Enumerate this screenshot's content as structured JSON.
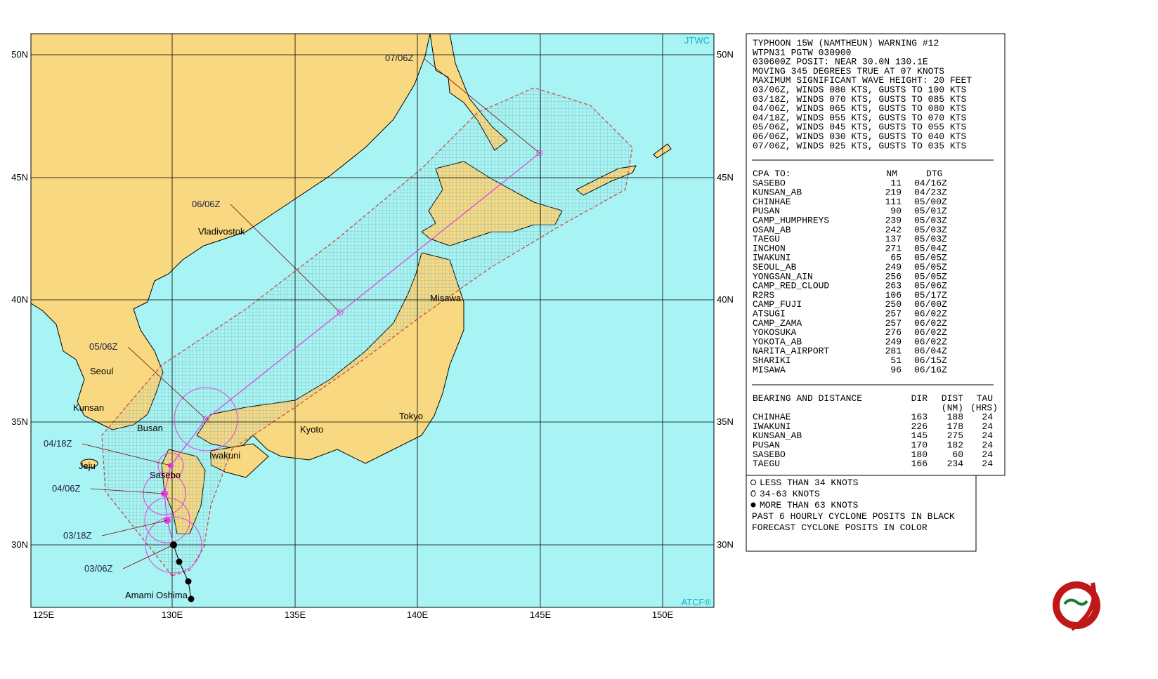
{
  "map": {
    "corner_labels": [
      "JTWC",
      "ATCF®"
    ],
    "lat_labels": [
      "50N",
      "45N",
      "40N",
      "35N",
      "30N"
    ],
    "lon_labels": [
      "125E",
      "130E",
      "135E",
      "140E",
      "145E",
      "150E"
    ],
    "places": [
      "Vladivostok",
      "Seoul",
      "Kunsan",
      "Busan",
      "Jeju",
      "Sasebo",
      "Iwakuni",
      "Kyoto",
      "Tokyo",
      "Misawa",
      "Amami Oshima"
    ],
    "forecast_times": [
      "03/06Z",
      "03/18Z",
      "04/06Z",
      "04/18Z",
      "05/06Z",
      "06/06Z",
      "07/06Z"
    ]
  },
  "warning": {
    "lines": [
      "TYPHOON 15W (NAMTHEUN) WARNING #12",
      "WTPN31 PGTW 030900",
      "030600Z POSIT: NEAR 30.0N 130.1E",
      "MOVING 345 DEGREES TRUE AT 07 KNOTS",
      "MAXIMUM SIGNIFICANT WAVE HEIGHT: 20 FEET",
      "03/06Z, WINDS 080 KTS, GUSTS TO 100 KTS",
      "03/18Z, WINDS 070 KTS, GUSTS TO 085 KTS",
      "04/06Z, WINDS 065 KTS, GUSTS TO 080 KTS",
      "04/18Z, WINDS 055 KTS, GUSTS TO 070 KTS",
      "05/06Z, WINDS 045 KTS, GUSTS TO 055 KTS",
      "06/06Z, WINDS 030 KTS, GUSTS TO 040 KTS",
      "07/06Z, WINDS 025 KTS, GUSTS TO 035 KTS"
    ]
  },
  "cpa": {
    "header": [
      "CPA TO:",
      "NM",
      "DTG"
    ],
    "rows": [
      [
        "SASEBO",
        "11",
        "04/16Z"
      ],
      [
        "KUNSAN_AB",
        "219",
        "04/23Z"
      ],
      [
        "CHINHAE",
        "111",
        "05/00Z"
      ],
      [
        "PUSAN",
        "90",
        "05/01Z"
      ],
      [
        "CAMP_HUMPHREYS",
        "239",
        "05/03Z"
      ],
      [
        "OSAN_AB",
        "242",
        "05/03Z"
      ],
      [
        "TAEGU",
        "137",
        "05/03Z"
      ],
      [
        "INCHON",
        "271",
        "05/04Z"
      ],
      [
        "IWAKUNI",
        "65",
        "05/05Z"
      ],
      [
        "SEOUL_AB",
        "249",
        "05/05Z"
      ],
      [
        "YONGSAN_AIN",
        "256",
        "05/05Z"
      ],
      [
        "CAMP_RED_CLOUD",
        "263",
        "05/06Z"
      ],
      [
        "R2RS",
        "106",
        "05/17Z"
      ],
      [
        "CAMP_FUJI",
        "250",
        "06/00Z"
      ],
      [
        "ATSUGI",
        "257",
        "06/02Z"
      ],
      [
        "CAMP_ZAMA",
        "257",
        "06/02Z"
      ],
      [
        "YOKOSUKA",
        "276",
        "06/02Z"
      ],
      [
        "YOKOTA_AB",
        "249",
        "06/02Z"
      ],
      [
        "NARITA_AIRPORT",
        "281",
        "06/04Z"
      ],
      [
        "SHARIKI",
        "51",
        "06/15Z"
      ],
      [
        "MISAWA",
        "96",
        "06/16Z"
      ]
    ]
  },
  "bearing": {
    "header": [
      "BEARING AND DISTANCE",
      "DIR",
      "DIST",
      "TAU"
    ],
    "subheader": [
      "(NM)",
      "(HRS)"
    ],
    "rows": [
      [
        "CHINHAE",
        "163",
        "188",
        "24"
      ],
      [
        "IWAKUNI",
        "226",
        "178",
        "24"
      ],
      [
        "KUNSAN_AB",
        "145",
        "275",
        "24"
      ],
      [
        "PUSAN",
        "170",
        "182",
        "24"
      ],
      [
        "SASEBO",
        "180",
        "60",
        "24"
      ],
      [
        "TAEGU",
        "166",
        "234",
        "24"
      ]
    ]
  },
  "legend": {
    "lines": [
      "LESS THAN 34 KNOTS",
      "34-63 KNOTS",
      "MORE THAN 63 KNOTS",
      "PAST 6 HOURLY CYCLONE POSITS IN BLACK",
      "FORECAST CYCLONE POSITS IN COLOR"
    ]
  }
}
